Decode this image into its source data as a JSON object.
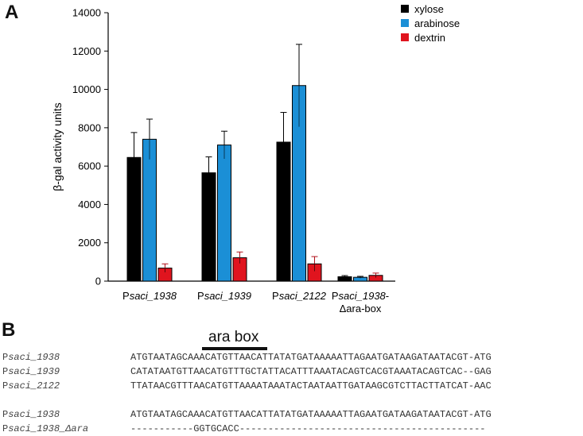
{
  "panel_a_letter": "A",
  "panel_b_letter": "B",
  "chart_data": {
    "type": "bar",
    "title": "",
    "ylabel": "β-gal activity units",
    "xlabel": "",
    "ylim": [
      0,
      14000
    ],
    "yticks": [
      0,
      2000,
      4000,
      6000,
      8000,
      10000,
      12000,
      14000
    ],
    "categories": [
      {
        "prefix": "P",
        "italic": "saci_1938",
        "suffix": ""
      },
      {
        "prefix": "P",
        "italic": "saci_1939",
        "suffix": ""
      },
      {
        "prefix": "P",
        "italic": "saci_2122",
        "suffix": ""
      },
      {
        "prefix": "P",
        "italic": "saci_1938",
        "suffix": "-",
        "line2": "Δara-box"
      }
    ],
    "series": [
      {
        "name": "xylose",
        "color": "#000000",
        "values": [
          6450,
          5650,
          7250,
          230
        ],
        "errors": [
          1300,
          830,
          1550,
          60
        ]
      },
      {
        "name": "arabinose",
        "color": "#1b8fd6",
        "values": [
          7400,
          7100,
          10200,
          200
        ],
        "errors": [
          1050,
          720,
          2150,
          50
        ]
      },
      {
        "name": "dextrin",
        "color": "#e0141e",
        "values": [
          680,
          1220,
          900,
          300
        ],
        "errors": [
          220,
          300,
          380,
          120
        ]
      }
    ],
    "legend_position": "top-right"
  },
  "ara_box_label": "ara box",
  "alignment_group1": [
    {
      "prefix": "P",
      "name": "saci_1938",
      "seq": "ATGTAATAGCAAACATGTTAACATTATATGATAAAAATTAGAATGATAAGATAATACGT-ATG"
    },
    {
      "prefix": "P",
      "name": "saci_1939",
      "seq": "CATATAATGTTAACATGTTTGCTATTACATTTAAATACAGTCACGTAAATACAGTCAC--GAG"
    },
    {
      "prefix": "P",
      "name": "saci_2122",
      "seq": "TTATAACGTTTAACATGTTAAAATAAATACTAATAATTGATAAGCGTCTTACTTATCAT-AAC"
    }
  ],
  "alignment_group2": [
    {
      "prefix": "P",
      "name": "saci_1938",
      "suffix": "",
      "seq": "ATGTAATAGCAAACATGTTAACATTATATGATAAAAATTAGAATGATAAGATAATACGT-ATG"
    },
    {
      "prefix": "P",
      "name": "saci_1938",
      "suffix": "_Δara",
      "seq": "-----------GGTGCACC-------------------------------------------"
    }
  ]
}
